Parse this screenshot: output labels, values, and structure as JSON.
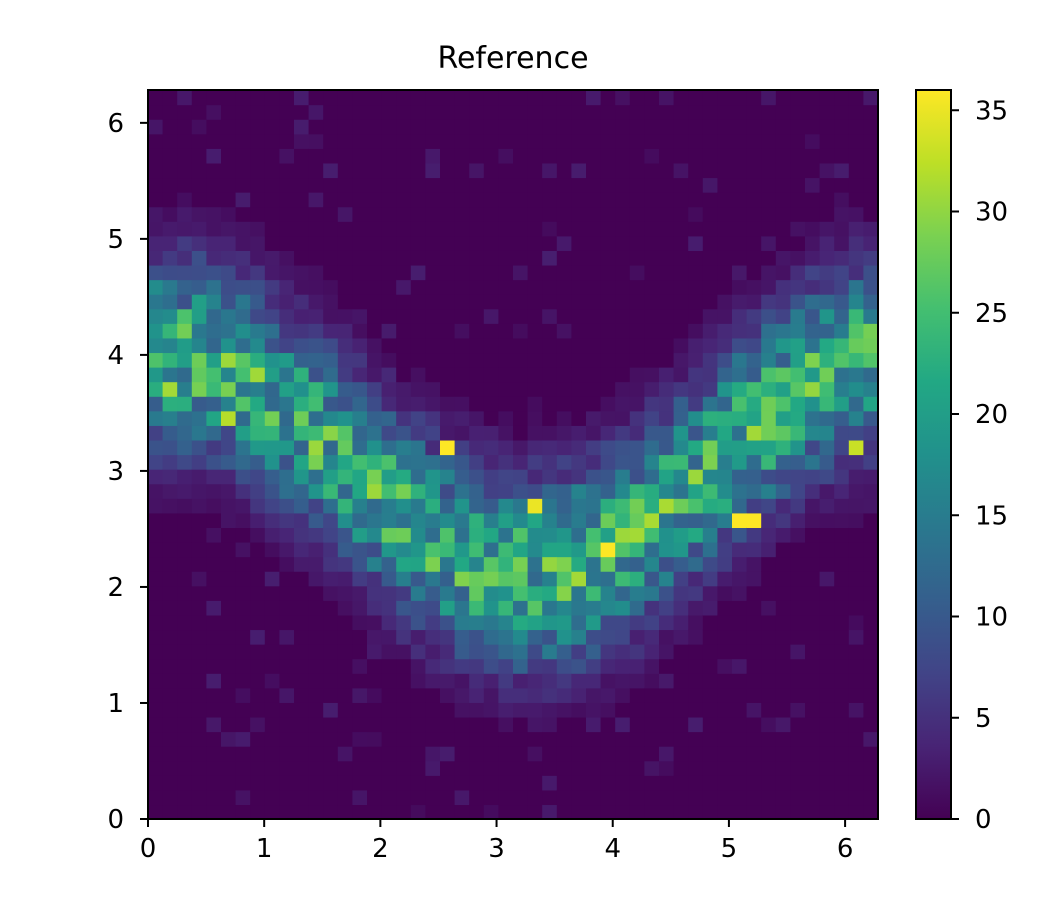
{
  "chart_data": {
    "type": "heatmap",
    "title": "Reference",
    "xlabel": "",
    "ylabel": "",
    "xlim": [
      0,
      6.2832
    ],
    "ylim": [
      0,
      6.2832
    ],
    "x_ticks": [
      0,
      1,
      2,
      3,
      4,
      5,
      6
    ],
    "y_ticks": [
      0,
      1,
      2,
      3,
      4,
      5,
      6
    ],
    "colorbar": {
      "min": 0,
      "max": 36,
      "ticks": [
        0,
        5,
        10,
        15,
        20,
        25,
        30,
        35
      ],
      "colormap": "viridis"
    },
    "grid": false,
    "bins": [
      50,
      50
    ],
    "distribution": {
      "description_curve": "y = 3.1 + 1.0*cos(x + 0.0)",
      "center_y_at_x0": 3.75,
      "min_center_y": 2.2,
      "min_center_x": 3.9,
      "center_y_at_x2pi": 3.6,
      "peak_count": 36
    },
    "hotspots": [
      {
        "x": 0.2,
        "y": 3.7,
        "value": 31
      },
      {
        "x": 0.7,
        "y": 3.45,
        "value": 32
      },
      {
        "x": 2.55,
        "y": 3.2,
        "value": 36
      },
      {
        "x": 3.35,
        "y": 2.7,
        "value": 35
      },
      {
        "x": 3.95,
        "y": 2.3,
        "value": 36
      },
      {
        "x": 5.15,
        "y": 2.55,
        "value": 36
      },
      {
        "x": 6.1,
        "y": 3.2,
        "value": 33
      }
    ]
  }
}
